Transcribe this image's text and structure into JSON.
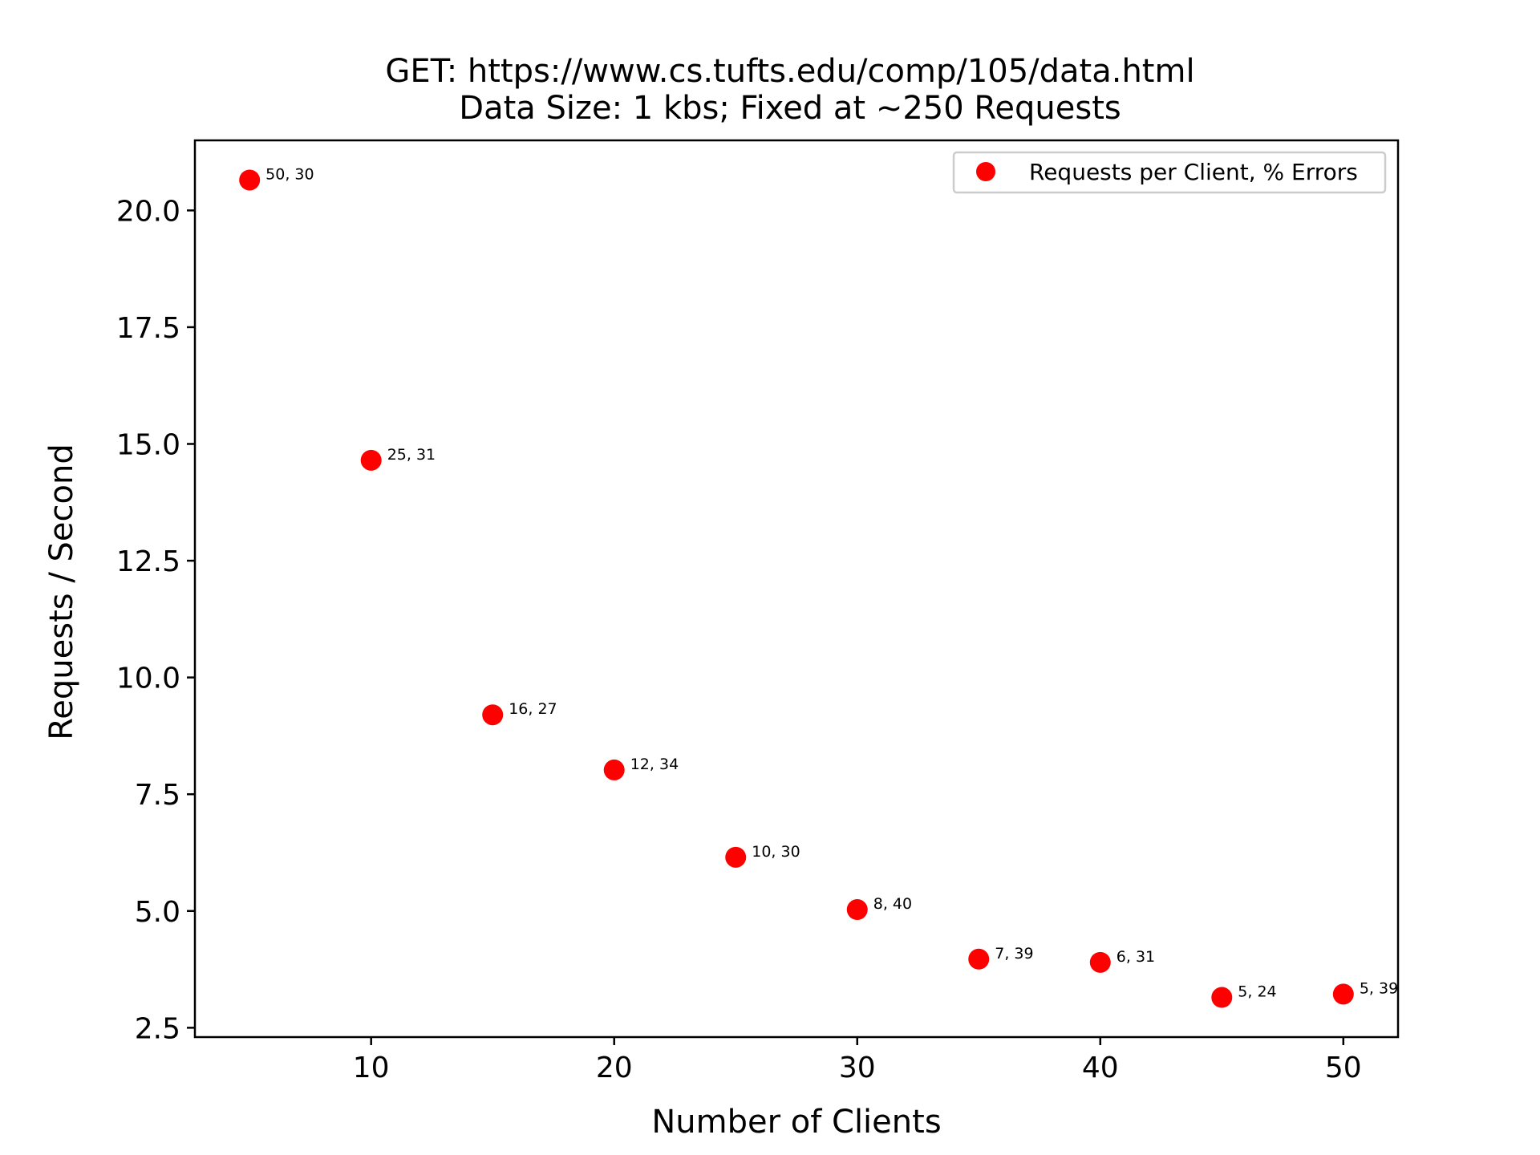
{
  "chart_data": {
    "type": "scatter",
    "title": "GET: https://www.cs.tufts.edu/comp/105/data.html",
    "subtitle": "Data Size: 1 kbs; Fixed at ~250 Requests",
    "xlabel": "Number of Clients",
    "ylabel": "Requests / Second",
    "xlim": [
      2.75,
      52.25
    ],
    "ylim": [
      2.3,
      21.5
    ],
    "xticks": [
      10,
      20,
      30,
      40,
      50
    ],
    "xtick_labels": [
      "10",
      "20",
      "30",
      "40",
      "50"
    ],
    "yticks": [
      2.5,
      5.0,
      7.5,
      10.0,
      12.5,
      15.0,
      17.5,
      20.0
    ],
    "ytick_labels": [
      "2.5",
      "5.0",
      "7.5",
      "10.0",
      "12.5",
      "15.0",
      "17.5",
      "20.0"
    ],
    "grid": false,
    "legend_position": "top-right",
    "marker_color": "#ff0000",
    "series": [
      {
        "name": "Requests per Client, % Errors",
        "points": [
          {
            "x": 5,
            "y": 20.65,
            "label": "50, 30"
          },
          {
            "x": 10,
            "y": 14.65,
            "label": "25, 31"
          },
          {
            "x": 15,
            "y": 9.2,
            "label": "16, 27"
          },
          {
            "x": 20,
            "y": 8.02,
            "label": "12, 34"
          },
          {
            "x": 25,
            "y": 6.15,
            "label": "10, 30"
          },
          {
            "x": 30,
            "y": 5.03,
            "label": "8, 40"
          },
          {
            "x": 35,
            "y": 3.97,
            "label": "7, 39"
          },
          {
            "x": 40,
            "y": 3.9,
            "label": "6, 31"
          },
          {
            "x": 45,
            "y": 3.15,
            "label": "5, 24"
          },
          {
            "x": 50,
            "y": 3.22,
            "label": "5, 39"
          }
        ]
      }
    ]
  }
}
